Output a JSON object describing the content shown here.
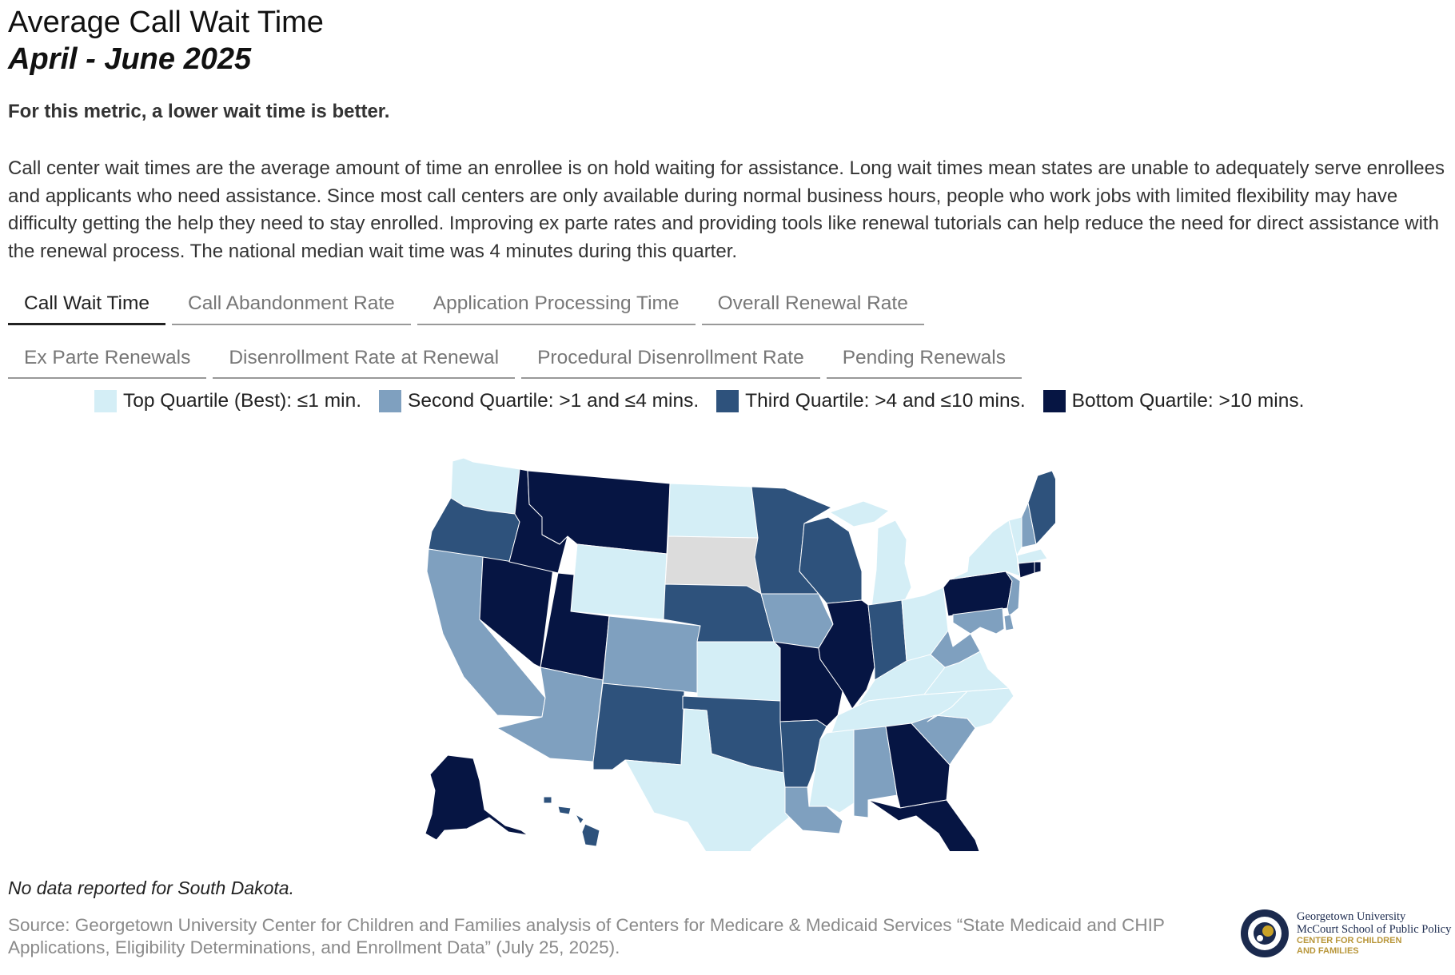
{
  "title": "Average Call Wait Time",
  "subtitle": "April - June 2025",
  "note_better": "For this metric, a lower wait time is better.",
  "description": "Call center wait times are the average amount of time an enrollee is on hold waiting for assistance. Long wait times mean states are unable to adequately serve enrollees and applicants who need assistance. Since most call centers are only available during normal business hours, people who work jobs with limited flexibility may have difficulty getting the help they need to stay enrolled. Improving ex parte rates and providing tools like renewal tutorials can help reduce the need for direct assistance with the renewal process. The national median wait time was 4 minutes during this quarter.",
  "tabs": [
    {
      "label": "Call Wait Time",
      "active": true
    },
    {
      "label": "Call Abandonment Rate"
    },
    {
      "label": "Application Processing Time"
    },
    {
      "label": "Overall Renewal Rate"
    },
    {
      "label": "Ex Parte Renewals"
    },
    {
      "label": "Disenrollment Rate at Renewal"
    },
    {
      "label": "Procedural Disenrollment Rate"
    },
    {
      "label": "Pending Renewals"
    }
  ],
  "legend": [
    {
      "label": "Top Quartile (Best): ≤1 min.",
      "color": "#d4eef6"
    },
    {
      "label": "Second Quartile: >1 and ≤4 mins.",
      "color": "#7fa0bf"
    },
    {
      "label": "Third Quartile: >4 and ≤10 mins.",
      "color": "#2e527c"
    },
    {
      "label": "Bottom Quartile: >10 mins.",
      "color": "#061543"
    }
  ],
  "no_data_color": "#dcdcdc",
  "states": {
    "WA": 1,
    "OR": 3,
    "CA": 2,
    "ID": 4,
    "NV": 4,
    "MT": 4,
    "WY": 1,
    "UT": 4,
    "CO": 2,
    "AZ": 2,
    "NM": 3,
    "ND": 1,
    "SD": 0,
    "NE": 3,
    "KS": 1,
    "OK": 3,
    "TX": 1,
    "MN": 3,
    "IA": 2,
    "MO": 4,
    "AR": 3,
    "LA": 2,
    "WI": 3,
    "IL": 4,
    "MI": 1,
    "IN": 3,
    "OH": 1,
    "KY": 1,
    "TN": 1,
    "MS": 1,
    "AL": 2,
    "GA": 4,
    "FL": 4,
    "SC": 2,
    "NC": 1,
    "VA": 1,
    "WV": 2,
    "PA": 4,
    "NY": 1,
    "NJ": 2,
    "DE": 2,
    "MD": 2,
    "VT": 1,
    "NH": 2,
    "ME": 3,
    "MA": 1,
    "CT": 4,
    "RI": 4,
    "AK": 4,
    "HI": 3
  },
  "no_data_note": "No data reported for South Dakota.",
  "source": "Source: Georgetown University Center for Children and Families analysis of Centers for Medicare & Medicaid Services “State Medicaid and CHIP Applications, Eligibility Determinations, and Enrollment Data” (July 25, 2025).",
  "logo": {
    "line1": "Georgetown University",
    "line2": "McCourt School of Public Policy",
    "line3": "CENTER FOR CHILDREN",
    "line4": "AND FAMILIES"
  }
}
